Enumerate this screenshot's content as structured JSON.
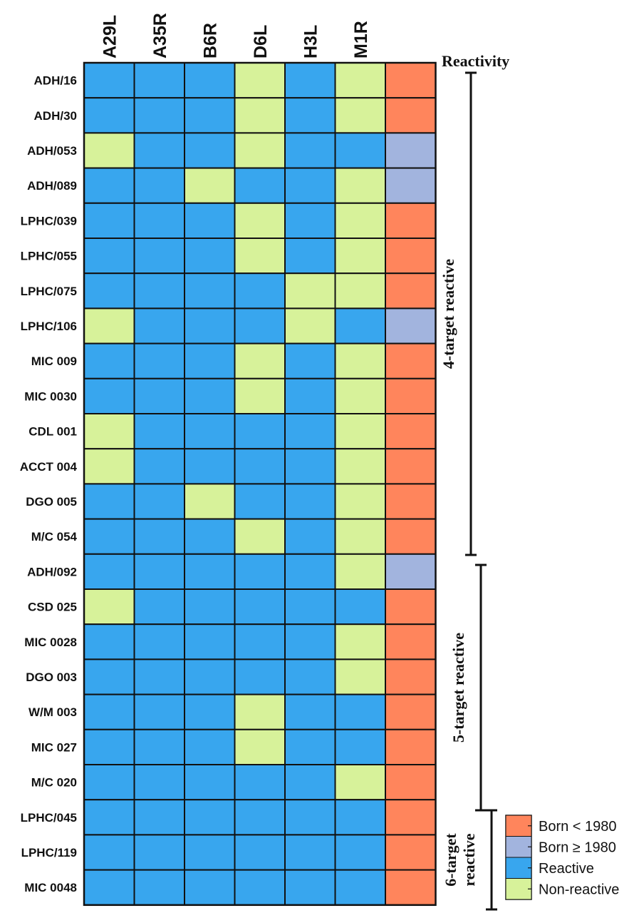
{
  "chart_data": {
    "type": "heatmap",
    "columns": [
      "A29L",
      "A35R",
      "B6R",
      "D6L",
      "H3L",
      "M1R"
    ],
    "extra_column_title": "Reactivity",
    "rows": [
      {
        "label": "ADH/16",
        "values": [
          1,
          1,
          1,
          0,
          1,
          0
        ],
        "born": "pre"
      },
      {
        "label": "ADH/30",
        "values": [
          1,
          1,
          1,
          0,
          1,
          0
        ],
        "born": "pre"
      },
      {
        "label": "ADH/053",
        "values": [
          0,
          1,
          1,
          0,
          1,
          1
        ],
        "born": "post"
      },
      {
        "label": "ADH/089",
        "values": [
          1,
          1,
          0,
          1,
          1,
          0
        ],
        "born": "post"
      },
      {
        "label": "LPHC/039",
        "values": [
          1,
          1,
          1,
          0,
          1,
          0
        ],
        "born": "pre"
      },
      {
        "label": "LPHC/055",
        "values": [
          1,
          1,
          1,
          0,
          1,
          0
        ],
        "born": "pre"
      },
      {
        "label": "LPHC/075",
        "values": [
          1,
          1,
          1,
          1,
          0,
          0
        ],
        "born": "pre"
      },
      {
        "label": "LPHC/106",
        "values": [
          0,
          1,
          1,
          1,
          0,
          1
        ],
        "born": "post"
      },
      {
        "label": "MIC 009",
        "values": [
          1,
          1,
          1,
          0,
          1,
          0
        ],
        "born": "pre"
      },
      {
        "label": "MIC 0030",
        "values": [
          1,
          1,
          1,
          0,
          1,
          0
        ],
        "born": "pre"
      },
      {
        "label": "CDL 001",
        "values": [
          0,
          1,
          1,
          1,
          1,
          0
        ],
        "born": "pre"
      },
      {
        "label": "ACCT 004",
        "values": [
          0,
          1,
          1,
          1,
          1,
          0
        ],
        "born": "pre"
      },
      {
        "label": "DGO 005",
        "values": [
          1,
          1,
          0,
          1,
          1,
          0
        ],
        "born": "pre"
      },
      {
        "label": "M/C 054",
        "values": [
          1,
          1,
          1,
          0,
          1,
          0
        ],
        "born": "pre"
      },
      {
        "label": "ADH/092",
        "values": [
          1,
          1,
          1,
          1,
          1,
          0
        ],
        "born": "post"
      },
      {
        "label": "CSD 025",
        "values": [
          0,
          1,
          1,
          1,
          1,
          1
        ],
        "born": "pre"
      },
      {
        "label": "MIC 0028",
        "values": [
          1,
          1,
          1,
          1,
          1,
          0
        ],
        "born": "pre"
      },
      {
        "label": "DGO 003",
        "values": [
          1,
          1,
          1,
          1,
          1,
          0
        ],
        "born": "pre"
      },
      {
        "label": "W/M 003",
        "values": [
          1,
          1,
          1,
          0,
          1,
          1
        ],
        "born": "pre"
      },
      {
        "label": "MIC 027",
        "values": [
          1,
          1,
          1,
          0,
          1,
          1
        ],
        "born": "pre"
      },
      {
        "label": "M/C 020",
        "values": [
          1,
          1,
          1,
          1,
          1,
          0
        ],
        "born": "pre"
      },
      {
        "label": "LPHC/045",
        "values": [
          1,
          1,
          1,
          1,
          1,
          1
        ],
        "born": "pre"
      },
      {
        "label": "LPHC/119",
        "values": [
          1,
          1,
          1,
          1,
          1,
          1
        ],
        "born": "pre"
      },
      {
        "label": "MIC 0048",
        "values": [
          1,
          1,
          1,
          1,
          1,
          1
        ],
        "born": "pre"
      }
    ],
    "groups": [
      {
        "label": "4-target reactive",
        "lines": [
          "4-target reactive"
        ],
        "start": 0,
        "end": 13
      },
      {
        "label": "5-target reactive",
        "lines": [
          "5-target reactive"
        ],
        "start": 14,
        "end": 20
      },
      {
        "label": "6-target reactive",
        "lines": [
          "6-target",
          "reactive"
        ],
        "start": 21,
        "end": 23
      }
    ],
    "legend": [
      {
        "key": "pre",
        "label": "Born < 1980"
      },
      {
        "key": "post",
        "label": "Born ≥ 1980"
      },
      {
        "key": "reactive",
        "label": "Reactive"
      },
      {
        "key": "nonreactive",
        "label": "Non-reactive"
      }
    ],
    "colors": {
      "reactive": "#38a6ee",
      "nonreactive": "#d7f29a",
      "pre": "#ff855c",
      "post": "#a2b4de",
      "grid": "#111111"
    }
  }
}
